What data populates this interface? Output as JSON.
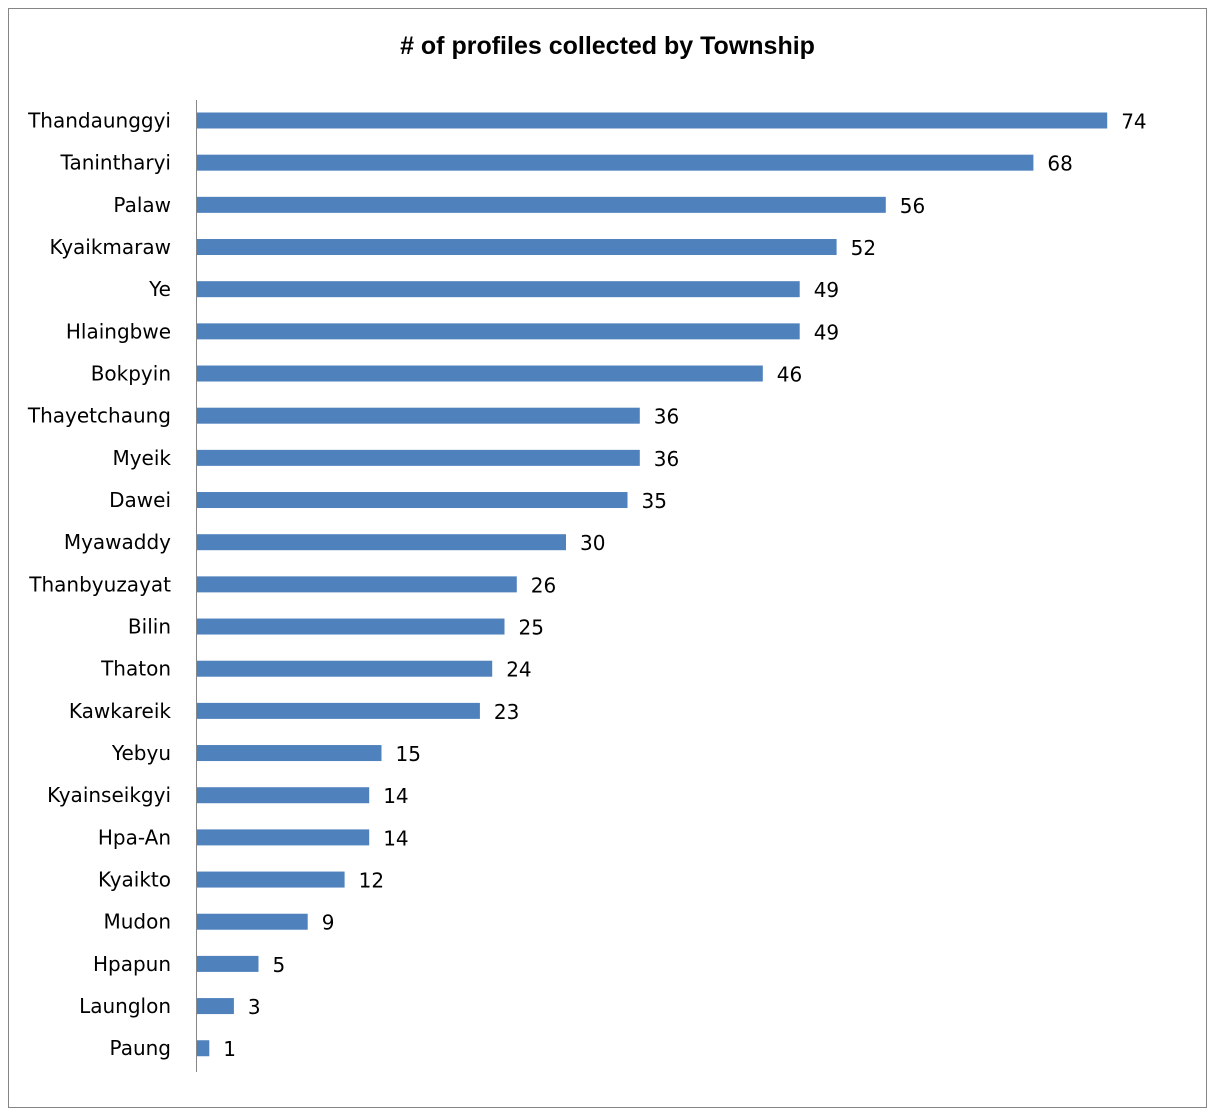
{
  "chart_data": {
    "type": "bar",
    "orientation": "horizontal",
    "title": "# of profiles collected by Township",
    "categories": [
      "Thandaunggyi",
      "Tanintharyi",
      "Palaw",
      "Kyaikmaraw",
      "Ye",
      "Hlaingbwe",
      "Bokpyin",
      "Thayetchaung",
      "Myeik",
      "Dawei",
      "Myawaddy",
      "Thanbyuzayat",
      "Bilin",
      "Thaton",
      "Kawkareik",
      "Yebyu",
      "Kyainseikgyi",
      "Hpa-An",
      "Kyaikto",
      "Mudon",
      "Hpapun",
      "Launglon",
      "Paung"
    ],
    "values": [
      74,
      68,
      56,
      52,
      49,
      49,
      46,
      36,
      36,
      35,
      30,
      26,
      25,
      24,
      23,
      15,
      14,
      14,
      12,
      9,
      5,
      3,
      1
    ],
    "bar_color": "#4F81BD",
    "data_labels": true,
    "grid": false,
    "legend": "none"
  }
}
